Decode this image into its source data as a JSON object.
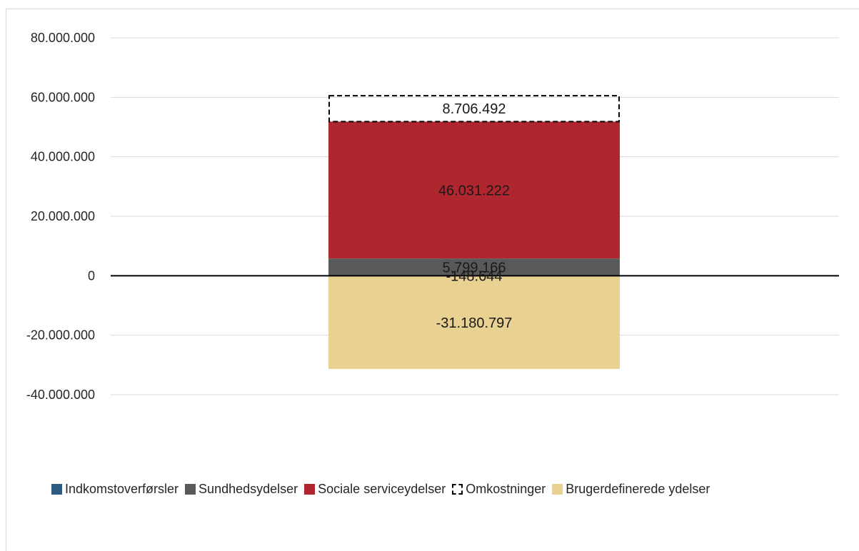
{
  "chart_data": {
    "type": "bar",
    "stacked": true,
    "categories": [
      ""
    ],
    "ylim": [
      -40000000,
      80000000
    ],
    "yticks": [
      80000000,
      60000000,
      40000000,
      20000000,
      0,
      -20000000,
      -40000000
    ],
    "ytick_labels": [
      "80.000.000",
      "60.000.000",
      "40.000.000",
      "20.000.000",
      "0",
      "-20.000.000",
      "-40.000.000"
    ],
    "grid": true,
    "legend_position": "bottom",
    "series": [
      {
        "name": "Indkomstoverførsler",
        "values": [
          -148644
        ],
        "label": "-148.644",
        "color": "#2e5a7f",
        "style": "solid"
      },
      {
        "name": "Sundhedsydelser",
        "values": [
          5799166
        ],
        "label": "5.799.166",
        "color": "#595959",
        "style": "solid"
      },
      {
        "name": "Sociale serviceydelser",
        "values": [
          46031222
        ],
        "label": "46.031.222",
        "color": "#b0262e",
        "style": "solid"
      },
      {
        "name": "Omkostninger",
        "values": [
          8706492
        ],
        "label": "8.706.492",
        "color": "#000000",
        "style": "dashed"
      },
      {
        "name": "Brugerdefinerede ydelser",
        "values": [
          -31180797
        ],
        "label": "-31.180.797",
        "color": "#e9d192",
        "style": "solid"
      }
    ]
  }
}
